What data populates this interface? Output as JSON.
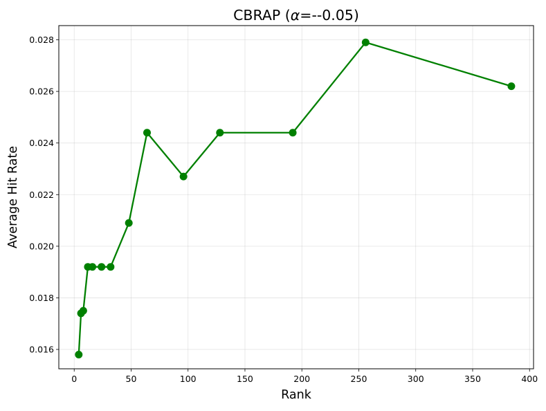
{
  "chart_data": {
    "type": "line",
    "title": "CBRAP (α=--0.05)",
    "title_prefix": "CBRAP (",
    "title_alpha": "α",
    "title_suffix": "=--0.05)",
    "xlabel": "Rank",
    "ylabel": "Average Hit Rate",
    "xlim": [
      -13.5,
      403.5
    ],
    "ylim": [
      0.01525,
      0.02855
    ],
    "xticks": [
      0,
      50,
      100,
      150,
      200,
      250,
      300,
      350,
      400
    ],
    "xtick_labels": [
      "0",
      "50",
      "100",
      "150",
      "200",
      "250",
      "300",
      "350",
      "400"
    ],
    "yticks": [
      0.016,
      0.018,
      0.02,
      0.022,
      0.024,
      0.026,
      0.028
    ],
    "ytick_labels": [
      "0.016",
      "0.018",
      "0.020",
      "0.022",
      "0.024",
      "0.026",
      "0.028"
    ],
    "grid": true,
    "color": "#008000",
    "series": [
      {
        "x": [
          4,
          6,
          8,
          12,
          16,
          24,
          32,
          48,
          64,
          96,
          128,
          192,
          256,
          384
        ],
        "y": [
          0.0158,
          0.0174,
          0.0175,
          0.0192,
          0.0192,
          0.0192,
          0.0192,
          0.0209,
          0.0244,
          0.0227,
          0.0244,
          0.0244,
          0.0279,
          0.0262
        ]
      }
    ]
  }
}
